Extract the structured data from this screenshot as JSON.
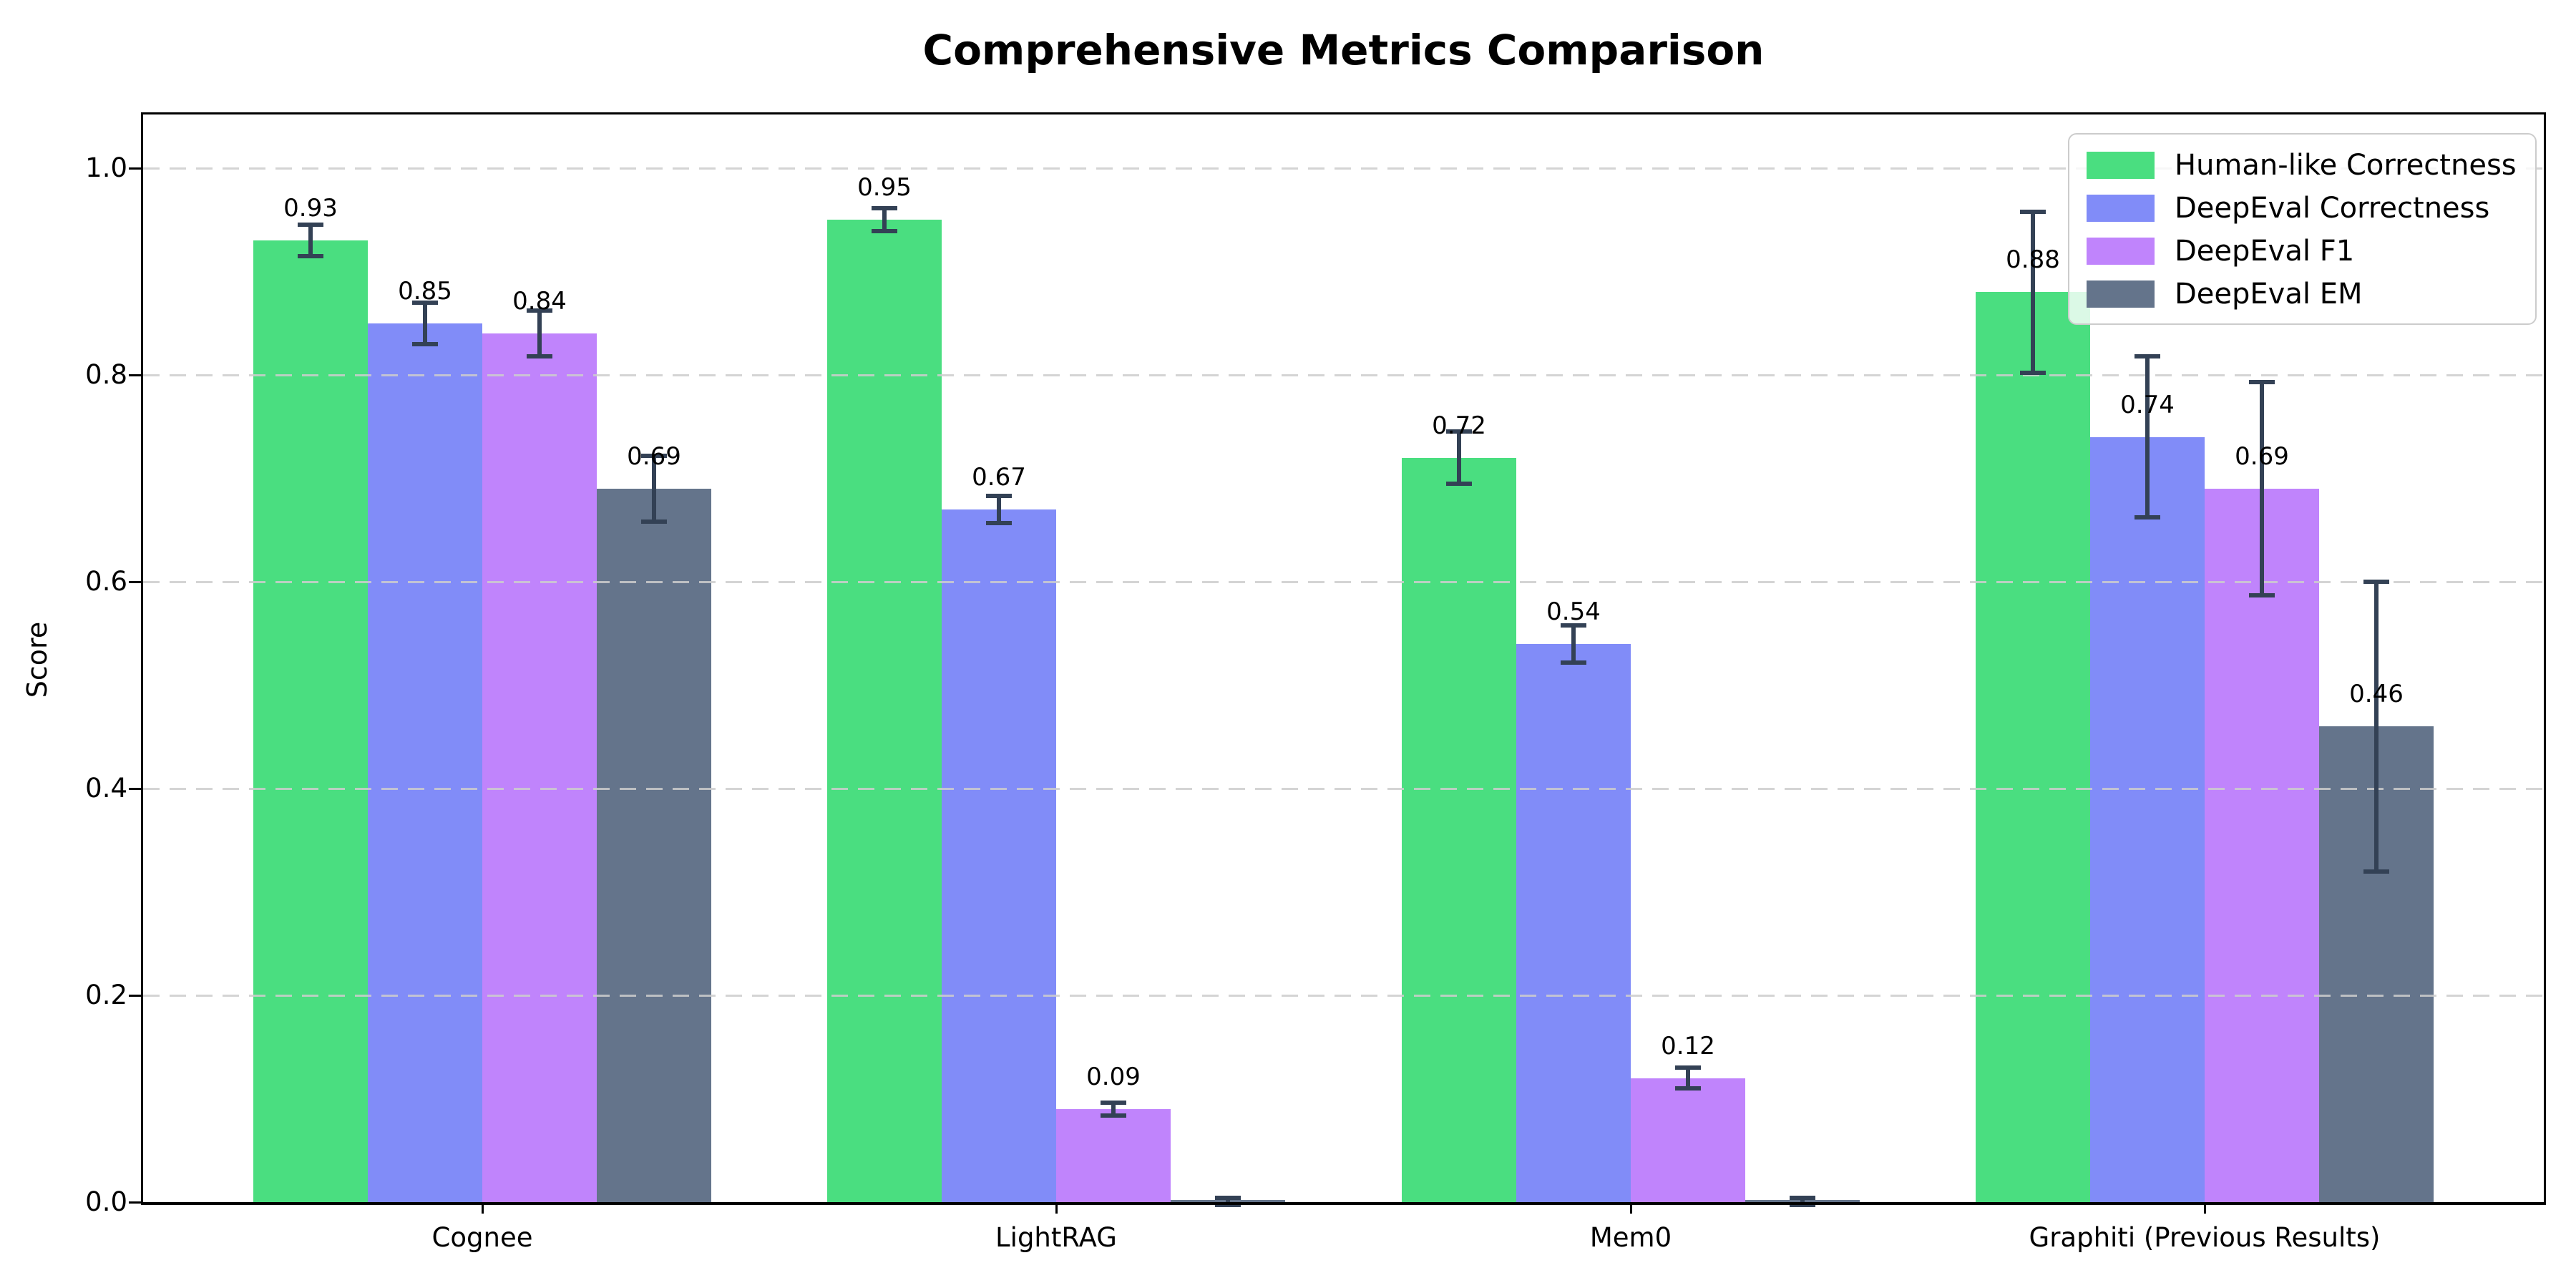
{
  "title": "Comprehensive Metrics Comparison",
  "ylabel": "Score",
  "chart_data": {
    "type": "bar",
    "title": "Comprehensive Metrics Comparison",
    "xlabel": "",
    "ylabel": "Score",
    "ylim": [
      0,
      1.05
    ],
    "ytick_labels": [
      "0.0",
      "0.2",
      "0.4",
      "0.6",
      "0.8",
      "1.0"
    ],
    "ytick_values": [
      0.0,
      0.2,
      0.4,
      0.6,
      0.8,
      1.0
    ],
    "grid": "horizontal-dashed-above-bars",
    "legend_position": "upper-right",
    "categories": [
      "Cognee",
      "LightRAG",
      "Mem0",
      "Graphiti (Previous Results)"
    ],
    "series": [
      {
        "name": "Human-like Correctness",
        "color": "#4ade80",
        "values": [
          0.93,
          0.95,
          0.72,
          0.88
        ],
        "errors": [
          0.015,
          0.011,
          0.025,
          0.078
        ],
        "labels": [
          "0.93",
          "0.95",
          "0.72",
          "0.88"
        ]
      },
      {
        "name": "DeepEval Correctness",
        "color": "#818cf8",
        "values": [
          0.85,
          0.67,
          0.54,
          0.74
        ],
        "errors": [
          0.02,
          0.013,
          0.018,
          0.078
        ],
        "labels": [
          "0.85",
          "0.67",
          "0.54",
          "0.74"
        ]
      },
      {
        "name": "DeepEval F1",
        "color": "#c084fc",
        "values": [
          0.84,
          0.09,
          0.12,
          0.69
        ],
        "errors": [
          0.022,
          0.006,
          0.01,
          0.103
        ],
        "labels": [
          "0.84",
          "0.09",
          "0.12",
          "0.69"
        ]
      },
      {
        "name": "DeepEval EM",
        "color": "#64748b",
        "values": [
          0.69,
          0.0,
          0.0,
          0.46
        ],
        "errors": [
          0.032,
          0.004,
          0.004,
          0.14
        ],
        "labels": [
          "0.69",
          "",
          "",
          "0.46"
        ]
      }
    ],
    "error_bar_color": "#334155",
    "axis_color": "#000000",
    "grid_color": "#cdcdcd",
    "background_color": "#ffffff"
  }
}
